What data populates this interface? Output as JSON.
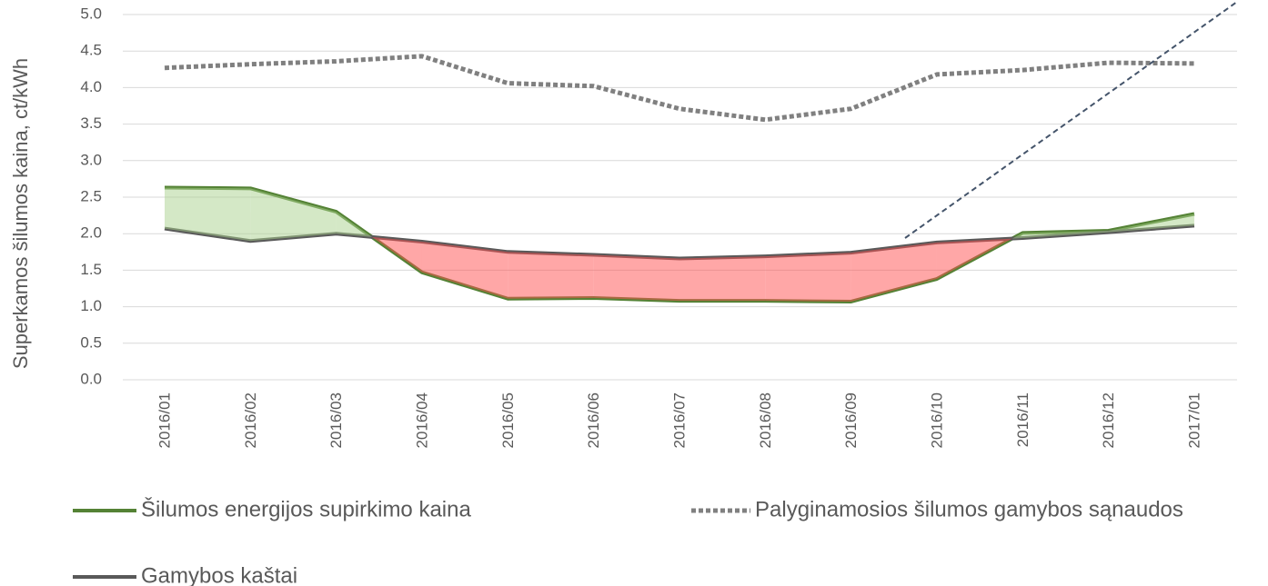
{
  "chart_data": {
    "type": "line",
    "y_label": "Superkamos šilumos kaina, ct/kWh",
    "categories": [
      "2016/01",
      "2016/02",
      "2016/03",
      "2016/04",
      "2016/05",
      "2016/06",
      "2016/07",
      "2016/08",
      "2016/09",
      "2016/10",
      "2016/11",
      "2016/12",
      "2017/01"
    ],
    "series": [
      {
        "name": "Šilumos energijos supirkimo kaina",
        "color": "#548235",
        "style": "solid",
        "values": [
          2.63,
          2.62,
          2.3,
          1.47,
          1.11,
          1.12,
          1.08,
          1.08,
          1.07,
          1.38,
          2.01,
          2.04,
          2.27
        ]
      },
      {
        "name": "Palyginamosios šilumos gamybos sąnaudos",
        "color": "#808080",
        "style": "dotted",
        "values": [
          4.27,
          4.32,
          4.36,
          4.43,
          4.06,
          4.02,
          3.71,
          3.56,
          3.71,
          4.18,
          4.24,
          4.34,
          4.33
        ]
      },
      {
        "name": "Gamybos kaštai",
        "color": "#595959",
        "style": "solid",
        "values": [
          2.07,
          1.9,
          2.0,
          1.89,
          1.75,
          1.71,
          1.66,
          1.69,
          1.74,
          1.88,
          1.94,
          2.02,
          2.11
        ]
      }
    ],
    "fill_above_color": "#a9d18e",
    "fill_below_color": "#ff5050",
    "ylim": [
      0,
      5
    ],
    "yticks": [
      {
        "value": 0,
        "label": "0.0"
      },
      {
        "value": 0.5,
        "label": "0.5"
      },
      {
        "value": 1,
        "label": "1.0"
      },
      {
        "value": 1.5,
        "label": "1.5"
      },
      {
        "value": 2,
        "label": "2.0"
      },
      {
        "value": 2.5,
        "label": "2.5"
      },
      {
        "value": 3,
        "label": "3.0"
      },
      {
        "value": 3.5,
        "label": "3.5"
      },
      {
        "value": 4,
        "label": "4.0"
      },
      {
        "value": 4.5,
        "label": "4.5"
      },
      {
        "value": 5,
        "label": "5.0"
      }
    ],
    "grid": true
  }
}
